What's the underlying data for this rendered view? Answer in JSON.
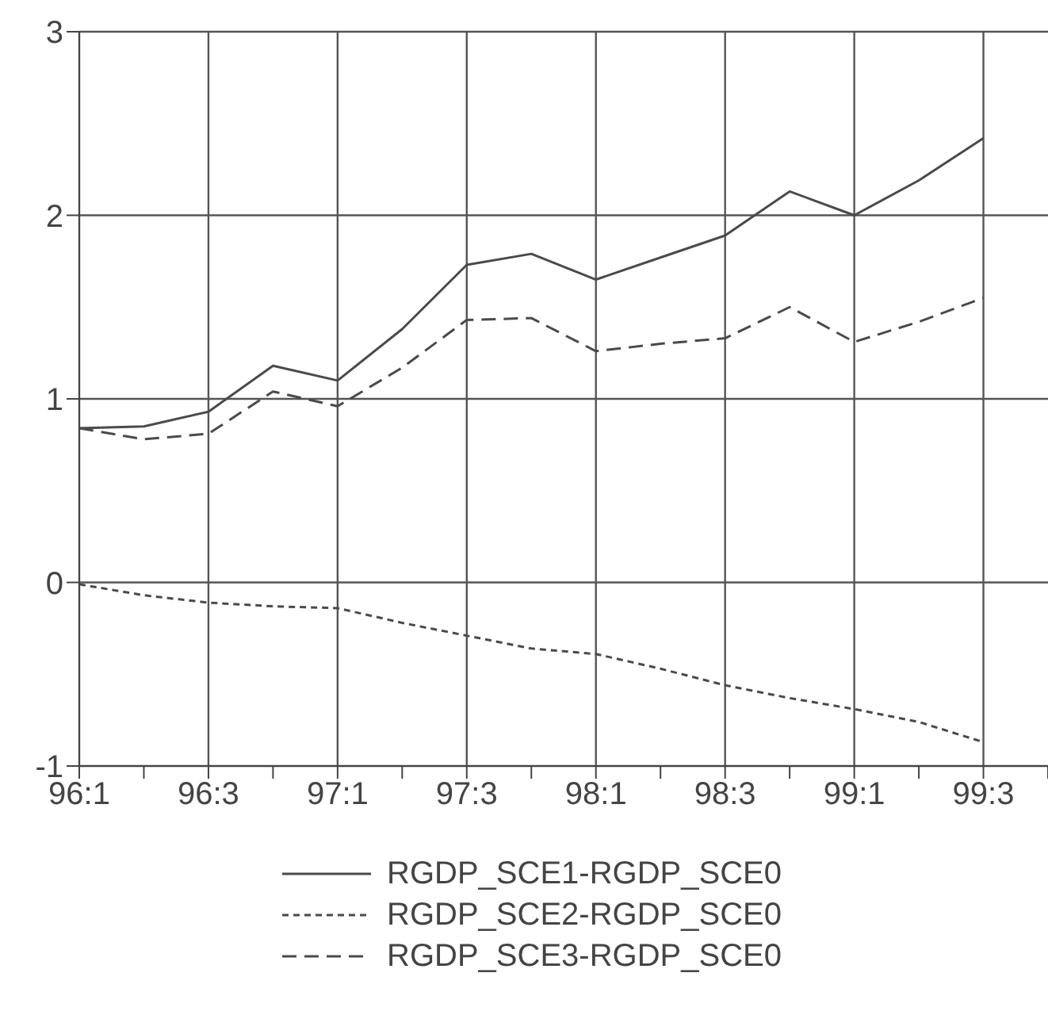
{
  "chart_data": {
    "type": "line",
    "categories": [
      "96:1",
      null,
      "96:3",
      null,
      "97:1",
      null,
      "97:3",
      null,
      "98:1",
      null,
      "98:3",
      null,
      "99:1",
      null,
      "99:3",
      null
    ],
    "series": [
      {
        "name": "RGDP_SCE1-RGDP_SCE0",
        "color": "#4a4a4a",
        "line_style": "solid",
        "values": [
          0.84,
          0.85,
          0.93,
          1.18,
          1.1,
          1.38,
          1.73,
          1.79,
          1.65,
          1.77,
          1.89,
          2.13,
          2.0,
          2.19,
          2.42,
          null
        ]
      },
      {
        "name": "RGDP_SCE2-RGDP_SCE0",
        "color": "#4a4a4a",
        "line_style": "dotted",
        "values": [
          -0.01,
          -0.07,
          -0.11,
          -0.13,
          -0.14,
          -0.22,
          -0.29,
          -0.36,
          -0.39,
          -0.47,
          -0.56,
          -0.63,
          -0.69,
          -0.76,
          -0.87,
          null
        ]
      },
      {
        "name": "RGDP_SCE3-RGDP_SCE0",
        "color": "#4a4a4a",
        "line_style": "dashed",
        "values": [
          0.84,
          0.78,
          0.81,
          1.04,
          0.96,
          1.17,
          1.43,
          1.44,
          1.26,
          1.3,
          1.33,
          1.5,
          1.31,
          1.42,
          1.55,
          null
        ]
      }
    ],
    "ylim": [
      -1,
      3
    ],
    "yticks": [
      -1,
      0,
      1,
      2,
      3
    ],
    "grid": true,
    "legend": "bottom",
    "marker": "none"
  }
}
